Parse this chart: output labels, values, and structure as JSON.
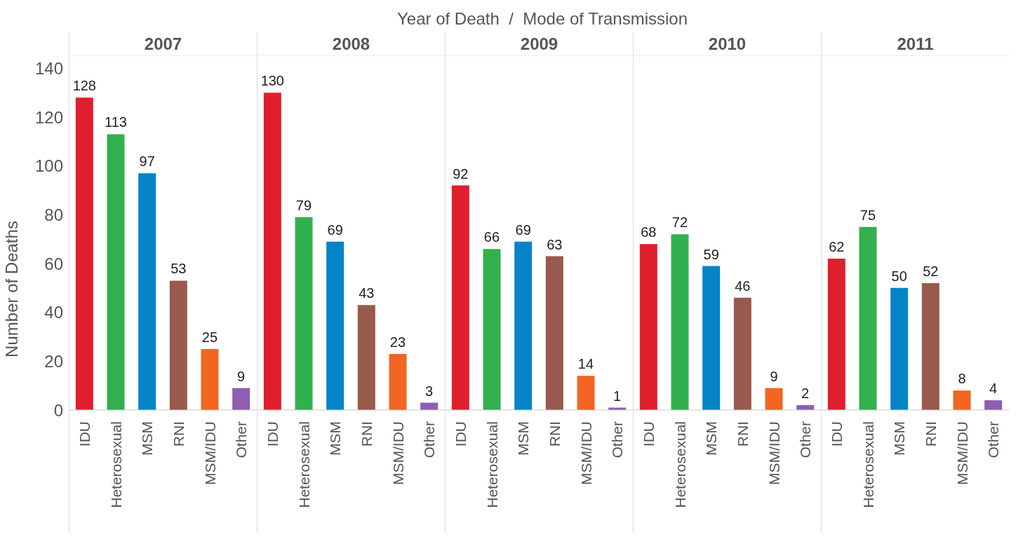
{
  "chart_data": [
    {
      "type": "bar",
      "title": "2007",
      "ylabel": "Number of Deaths",
      "annotations": [
        "Year of Death  /  Mode of Transmission"
      ],
      "categories": [
        "IDU",
        "Heterosexual",
        "MSM",
        "RNI",
        "MSM/IDU",
        "Other"
      ],
      "values": [
        128,
        113,
        97,
        53,
        25,
        9
      ],
      "colors": [
        "#e01f2d",
        "#33b04e",
        "#0484c7",
        "#975a4d",
        "#f26522",
        "#8c5fb0"
      ],
      "ylim": [
        0,
        145
      ],
      "yticks": [
        0,
        20,
        40,
        60,
        80,
        100,
        120,
        140
      ],
      "data_labels": true,
      "grid": false,
      "legend": false
    },
    {
      "type": "bar",
      "title": "2008",
      "categories": [
        "IDU",
        "Heterosexual",
        "MSM",
        "RNI",
        "MSM/IDU",
        "Other"
      ],
      "values": [
        130,
        79,
        69,
        43,
        23,
        3
      ],
      "colors": [
        "#e01f2d",
        "#33b04e",
        "#0484c7",
        "#975a4d",
        "#f26522",
        "#8c5fb0"
      ],
      "ylim": [
        0,
        145
      ],
      "yticks": [
        0,
        20,
        40,
        60,
        80,
        100,
        120,
        140
      ],
      "tick_labels": "x",
      "data_labels": true,
      "grid": false,
      "legend": false
    },
    {
      "type": "bar",
      "title": "2009",
      "categories": [
        "IDU",
        "Heterosexual",
        "MSM",
        "RNI",
        "MSM/IDU",
        "Other"
      ],
      "values": [
        92,
        66,
        69,
        63,
        14,
        1
      ],
      "colors": [
        "#e01f2d",
        "#33b04e",
        "#0484c7",
        "#975a4d",
        "#f26522",
        "#8c5fb0"
      ],
      "ylim": [
        0,
        145
      ],
      "yticks": [
        0,
        20,
        40,
        60,
        80,
        100,
        120,
        140
      ],
      "tick_labels": "x",
      "data_labels": true,
      "grid": false,
      "legend": false
    },
    {
      "type": "bar",
      "title": "2010",
      "categories": [
        "IDU",
        "Heterosexual",
        "MSM",
        "RNI",
        "MSM/IDU",
        "Other"
      ],
      "values": [
        68,
        72,
        59,
        46,
        9,
        2
      ],
      "colors": [
        "#e01f2d",
        "#33b04e",
        "#0484c7",
        "#975a4d",
        "#f26522",
        "#8c5fb0"
      ],
      "ylim": [
        0,
        145
      ],
      "yticks": [
        0,
        20,
        40,
        60,
        80,
        100,
        120,
        140
      ],
      "tick_labels": "x",
      "data_labels": true,
      "grid": false,
      "legend": false
    },
    {
      "type": "bar",
      "title": "2011",
      "categories": [
        "IDU",
        "Heterosexual",
        "MSM",
        "RNI",
        "MSM/IDU",
        "Other"
      ],
      "values": [
        62,
        75,
        50,
        52,
        8,
        4
      ],
      "colors": [
        "#e01f2d",
        "#33b04e",
        "#0484c7",
        "#975a4d",
        "#f26522",
        "#8c5fb0"
      ],
      "ylim": [
        0,
        145
      ],
      "yticks": [
        0,
        20,
        40,
        60,
        80,
        100,
        120,
        140
      ],
      "tick_labels": "x",
      "data_labels": true,
      "grid": false,
      "legend": false
    }
  ]
}
